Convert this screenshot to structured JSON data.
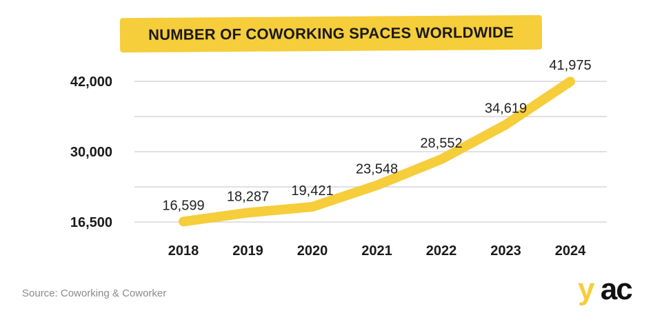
{
  "chart_data": {
    "type": "line",
    "title": "NUMBER OF COWORKING SPACES WORLDWIDE",
    "x": [
      "2018",
      "2019",
      "2020",
      "2021",
      "2022",
      "2023",
      "2024"
    ],
    "values": [
      16599,
      18287,
      19421,
      23548,
      28552,
      34619,
      41975
    ],
    "value_labels": [
      "16,599",
      "18,287",
      "19,421",
      "23,548",
      "28,552",
      "34,619",
      "41,975"
    ],
    "yticks": [
      16500,
      30000,
      42000
    ],
    "ytick_labels": [
      "16,500",
      "30,000",
      "42,000"
    ],
    "ylim": [
      16500,
      42000
    ],
    "grid": true,
    "line_color": "#f6cd3a"
  },
  "footer": {
    "source": "Source: Coworking & Coworker",
    "logo_text": "yac"
  }
}
